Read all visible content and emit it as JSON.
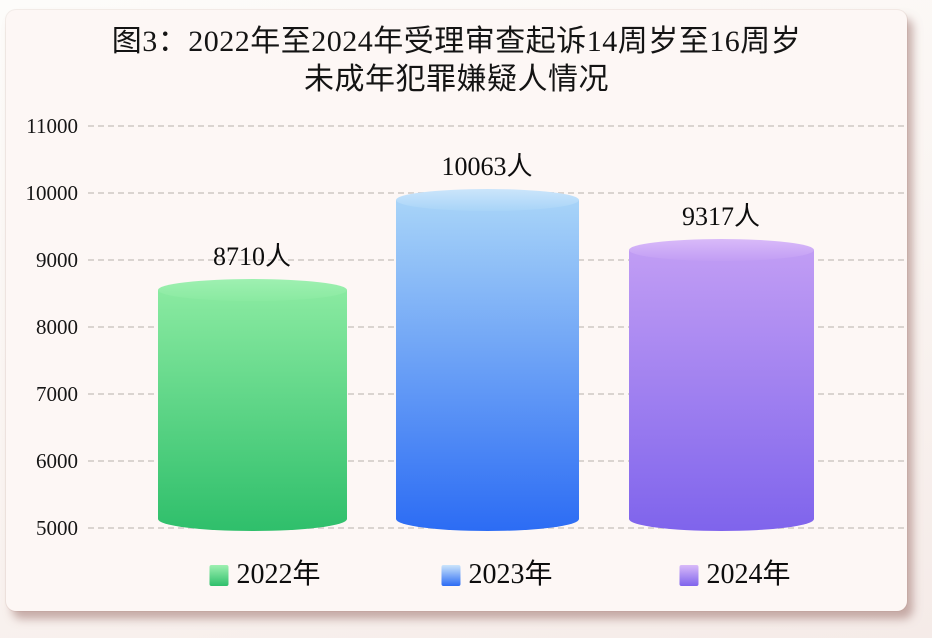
{
  "title": {
    "line1": "图3：2022年至2024年受理审查起诉14周岁至16周岁",
    "line2": "未成年犯罪嫌疑人情况"
  },
  "chart_data": {
    "type": "bar",
    "style": "3d-cylinder",
    "title": "图3：2022年至2024年受理审查起诉14周岁至16周岁未成年犯罪嫌疑人情况",
    "categories": [
      "2022年",
      "2023年",
      "2024年"
    ],
    "values": [
      8710,
      10063,
      9317
    ],
    "value_labels": [
      "8710人",
      "10063人",
      "9317人"
    ],
    "unit": "人",
    "ylim": [
      5000,
      11000
    ],
    "yticks": [
      5000,
      6000,
      7000,
      8000,
      9000,
      10000,
      11000
    ],
    "grid": "horizontal-dashed",
    "legend_position": "bottom",
    "legend": [
      "2022年",
      "2023年",
      "2024年"
    ],
    "series_colors": [
      {
        "label": "2022年",
        "ellipse": "#9ef0b1",
        "body_top": "#8aeaa1",
        "body_bottom": "#2fbf6b"
      },
      {
        "label": "2023年",
        "ellipse": "#cbe5fb",
        "body_top": "#a8d4f8",
        "body_bottom": "#2c6cf4"
      },
      {
        "label": "2024年",
        "ellipse": "#d9baf9",
        "body_top": "#c19df4",
        "body_bottom": "#7f64ec"
      }
    ]
  },
  "colors": {
    "card_bg": "#fdf7f5",
    "grid_line": "#c5beba",
    "card_shadow": "rgba(150,103,98,0.5)",
    "text": "#141414"
  }
}
